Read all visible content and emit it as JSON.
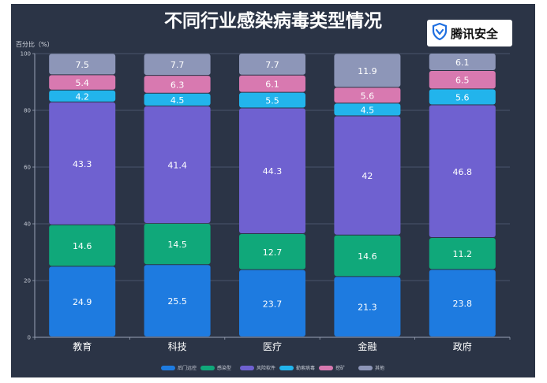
{
  "brand": {
    "name": "腾讯安全",
    "icon": "shield-icon"
  },
  "chart_data": {
    "type": "bar",
    "stacked": true,
    "title": "不同行业感染病毒类型情况",
    "ylabel": "百分比（%）",
    "ylim": [
      0,
      100
    ],
    "yticks": [
      0,
      20,
      40,
      60,
      80,
      100
    ],
    "grid": true,
    "legend_position": "bottom",
    "categories": [
      "教育",
      "科技",
      "医疗",
      "金融",
      "政府"
    ],
    "series": [
      {
        "name": "后门远控",
        "color": "#1e7be0",
        "values": [
          24.9,
          25.5,
          23.7,
          21.3,
          23.8
        ]
      },
      {
        "name": "感染型",
        "color": "#10a87a",
        "values": [
          14.6,
          14.5,
          12.7,
          14.6,
          11.2
        ]
      },
      {
        "name": "风险软件",
        "color": "#6f61d0",
        "values": [
          43.3,
          41.4,
          44.3,
          42,
          46.8
        ]
      },
      {
        "name": "勒索病毒",
        "color": "#22b4ec",
        "values": [
          4.2,
          4.5,
          5.5,
          4.5,
          5.6
        ]
      },
      {
        "name": "挖矿",
        "color": "#d879b0",
        "values": [
          5.4,
          6.3,
          6.1,
          5.6,
          6.5
        ]
      },
      {
        "name": "其他",
        "color": "#8d96b8",
        "values": [
          7.5,
          7.7,
          7.7,
          11.9,
          6.1
        ]
      }
    ]
  }
}
